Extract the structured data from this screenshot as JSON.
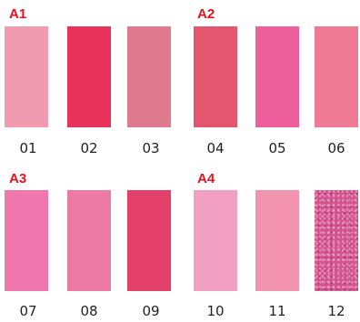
{
  "groups": [
    {
      "label": "A1"
    },
    {
      "label": "A2"
    },
    {
      "label": "A3"
    },
    {
      "label": "A4"
    }
  ],
  "swatches": [
    {
      "number": "01",
      "color": "#f29ab0"
    },
    {
      "number": "02",
      "color": "#e8325a"
    },
    {
      "number": "03",
      "color": "#e07a8e"
    },
    {
      "number": "04",
      "color": "#e4566e"
    },
    {
      "number": "05",
      "color": "#ec5f9a"
    },
    {
      "number": "06",
      "color": "#ee7a94"
    },
    {
      "number": "07",
      "color": "#ef76ae"
    },
    {
      "number": "08",
      "color": "#ec7aa2"
    },
    {
      "number": "09",
      "color": "#e4416a"
    },
    {
      "number": "10",
      "color": "#f2a0c2"
    },
    {
      "number": "11",
      "color": "#f294b0"
    },
    {
      "number": "12",
      "color": "#d2558e"
    }
  ]
}
